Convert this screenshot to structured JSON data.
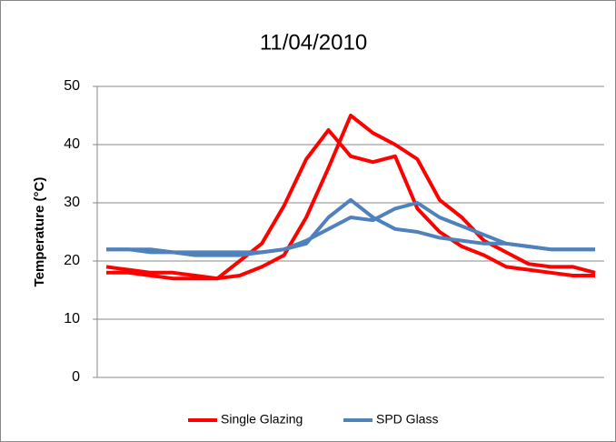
{
  "chart_data": {
    "type": "line",
    "title": "11/04/2010",
    "y_label": "Temperature (°C)",
    "ylim": [
      0,
      50
    ],
    "yticks": [
      0,
      10,
      20,
      30,
      40,
      50
    ],
    "grid": true,
    "legend": "bottom",
    "series": [
      {
        "name": "Single Glazing",
        "color": "#ff0000",
        "values": [
          [
            19,
            18.5,
            18,
            18,
            17.5,
            17,
            20,
            23,
            29.5,
            37.5,
            42.5,
            38,
            37,
            38,
            29,
            25,
            22.5,
            21,
            19,
            18.5,
            18,
            17.5,
            17.5
          ],
          [
            18,
            18,
            17.5,
            17,
            17,
            17,
            17.5,
            19,
            21,
            27.5,
            36,
            45,
            42,
            40,
            37.5,
            30.5,
            27.5,
            23.5,
            21.5,
            19.5,
            19,
            19,
            18
          ]
        ]
      },
      {
        "name": "SPD Glass",
        "color": "#4f81bd",
        "values": [
          [
            22,
            22,
            21.5,
            21.5,
            21.5,
            21.5,
            21.5,
            21.5,
            22,
            23,
            27.5,
            30.5,
            27.5,
            25.5,
            25,
            24,
            23.5,
            23,
            23,
            22.5,
            22,
            22,
            22
          ],
          [
            22,
            22,
            22,
            21.5,
            21,
            21,
            21,
            21.5,
            22,
            23.5,
            25.5,
            27.5,
            27,
            29,
            30,
            27.5,
            26,
            24.5,
            23,
            22.5,
            22,
            22,
            22
          ]
        ]
      }
    ]
  }
}
